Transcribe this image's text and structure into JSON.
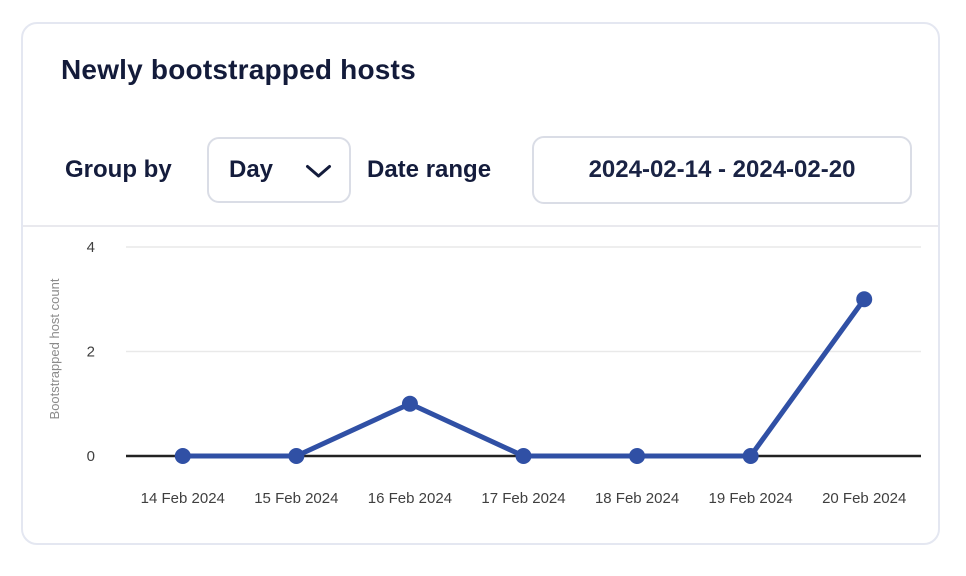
{
  "card": {
    "title": "Newly bootstrapped hosts"
  },
  "controls": {
    "group_by_label": "Group by",
    "group_by_value": "Day",
    "date_range_label": "Date range",
    "date_range_value": "2024-02-14 - 2024-02-20"
  },
  "icons": {
    "dropdown_chevron": "chevron-down-icon"
  },
  "theme": {
    "accent_blue": "#3050a5",
    "navy_text": "#141c3c",
    "card_border": "#e4e7f1",
    "grid_line": "#e9e9e9",
    "axis_line": "#222222",
    "tick_text": "#3f3f3f",
    "axis_title_text": "#8a8a8a"
  },
  "chart_data": {
    "type": "line",
    "title": "Newly bootstrapped hosts",
    "categories": [
      "14 Feb 2024",
      "15 Feb 2024",
      "16 Feb 2024",
      "17 Feb 2024",
      "18 Feb 2024",
      "19 Feb 2024",
      "20 Feb 2024"
    ],
    "values": [
      0,
      0,
      1,
      0,
      0,
      0,
      3
    ],
    "xlabel": "",
    "ylabel": "Bootstrapped host count",
    "yticks": [
      0,
      2,
      4
    ],
    "ylim": [
      0,
      4
    ],
    "grid": "horizontal",
    "legend": "none",
    "series_color": "#3050a5"
  }
}
